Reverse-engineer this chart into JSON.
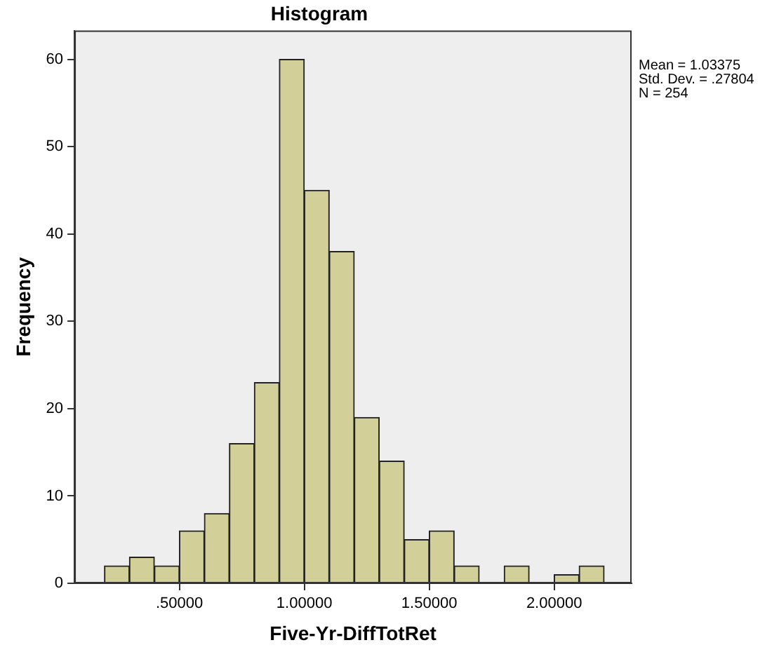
{
  "chart_data": {
    "type": "histogram",
    "title": "Histogram",
    "xlabel": "Five-Yr-DiffTotRet",
    "ylabel": "Frequency",
    "bins": [
      0.2,
      0.3,
      0.4,
      0.5,
      0.6,
      0.7,
      0.8,
      0.9,
      1.0,
      1.1,
      1.2,
      1.3,
      1.4,
      1.5,
      1.6,
      1.7,
      1.8,
      1.9,
      2.0,
      2.1,
      2.2
    ],
    "values": [
      2,
      3,
      2,
      6,
      8,
      16,
      23,
      60,
      45,
      38,
      19,
      14,
      5,
      6,
      2,
      0,
      2,
      0,
      1,
      2
    ],
    "color": "#d3cf98",
    "xlim": [
      0.08,
      2.31
    ],
    "xticks": [
      {
        "value": 0.5,
        "label": ".50000"
      },
      {
        "value": 1.0,
        "label": "1.00000"
      },
      {
        "value": 1.5,
        "label": "1.50000"
      },
      {
        "value": 2.0,
        "label": "2.00000"
      }
    ],
    "ylim": [
      0,
      63.3
    ],
    "yticks": [
      0,
      10,
      20,
      30,
      40,
      50,
      60
    ],
    "grid": false,
    "legend": false,
    "annotations": [
      "Mean = 1.03375",
      "Std. Dev. = .27804",
      "N = 254"
    ]
  }
}
